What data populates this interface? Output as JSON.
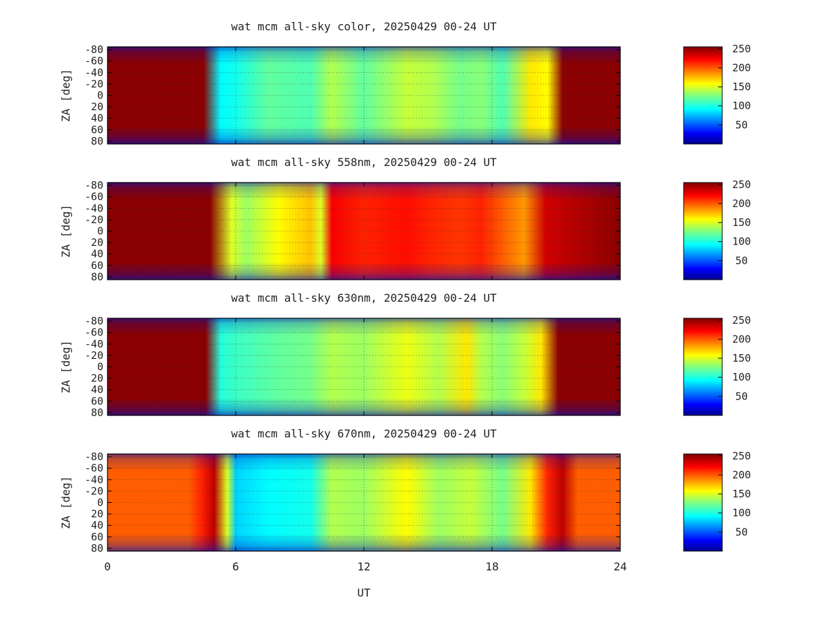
{
  "chart_data": [
    {
      "type": "heatmap",
      "title": "wat mcm all-sky color, 20250429 00-24 UT",
      "xlabel": "UT",
      "ylabel": "ZA [deg]",
      "xlim": [
        0,
        24
      ],
      "ylim": [
        -85,
        85
      ],
      "y_ticks": [
        "-80",
        "-60",
        "-40",
        "-20",
        "0",
        "20",
        "40",
        "60",
        "80"
      ],
      "colorbar": {
        "range": [
          0,
          255
        ],
        "ticks": [
          "50",
          "100",
          "150",
          "200",
          "250"
        ],
        "colormap": "jet"
      },
      "grid": true,
      "profile": {
        "ut": [
          0,
          4.5,
          5.3,
          6.0,
          7.5,
          9.5,
          10.5,
          12,
          14,
          15.2,
          16.5,
          17.5,
          18.5,
          19.8,
          20.6,
          21.3,
          24
        ],
        "value": [
          252,
          252,
          95,
          100,
          120,
          115,
          140,
          120,
          145,
          140,
          125,
          130,
          115,
          165,
          160,
          252,
          252
        ]
      }
    },
    {
      "type": "heatmap",
      "title": "wat mcm all-sky 558nm, 20250429 00-24 UT",
      "xlabel": "UT",
      "ylabel": "ZA [deg]",
      "xlim": [
        0,
        24
      ],
      "ylim": [
        -85,
        85
      ],
      "y_ticks": [
        "-80",
        "-60",
        "-40",
        "-20",
        "0",
        "20",
        "40",
        "60",
        "80"
      ],
      "colorbar": {
        "range": [
          0,
          255
        ],
        "ticks": [
          "50",
          "100",
          "150",
          "200",
          "250"
        ],
        "colormap": "jet"
      },
      "grid": true,
      "profile": {
        "ut": [
          0,
          4.8,
          5.8,
          6.5,
          8,
          9.5,
          10.0,
          10.5,
          12,
          14,
          15.0,
          16.5,
          17.5,
          18.5,
          19.5,
          20.5,
          24
        ],
        "value": [
          252,
          252,
          150,
          135,
          160,
          175,
          150,
          225,
          215,
          220,
          215,
          210,
          215,
          200,
          185,
          235,
          252
        ]
      }
    },
    {
      "type": "heatmap",
      "title": "wat mcm all-sky 630nm, 20250429 00-24 UT",
      "xlabel": "UT",
      "ylabel": "ZA [deg]",
      "xlim": [
        0,
        24
      ],
      "ylim": [
        -85,
        85
      ],
      "y_ticks": [
        "-80",
        "-60",
        "-40",
        "-20",
        "0",
        "20",
        "40",
        "60",
        "80"
      ],
      "colorbar": {
        "range": [
          0,
          255
        ],
        "ticks": [
          "50",
          "100",
          "150",
          "200",
          "250"
        ],
        "colormap": "jet"
      },
      "grid": true,
      "profile": {
        "ut": [
          0,
          4.6,
          5.3,
          6.0,
          8,
          9.5,
          10.5,
          12,
          14,
          15.5,
          16.8,
          17.5,
          18.5,
          19.5,
          20.3,
          21.1,
          24
        ],
        "value": [
          252,
          252,
          105,
          110,
          120,
          125,
          140,
          135,
          155,
          140,
          165,
          140,
          130,
          145,
          165,
          252,
          252
        ]
      }
    },
    {
      "type": "heatmap",
      "title": "wat mcm all-sky 670nm, 20250429 00-24 UT",
      "xlabel": "UT",
      "ylabel": "ZA [deg]",
      "xlim": [
        0,
        24
      ],
      "ylim": [
        -85,
        85
      ],
      "x_ticks": [
        "0",
        "6",
        "12",
        "18",
        "24"
      ],
      "y_ticks": [
        "-80",
        "-60",
        "-40",
        "-20",
        "0",
        "20",
        "40",
        "60",
        "80"
      ],
      "colorbar": {
        "range": [
          0,
          255
        ],
        "ticks": [
          "50",
          "100",
          "150",
          "200",
          "250"
        ],
        "colormap": "jet"
      },
      "grid": true,
      "profile": {
        "ut": [
          0,
          3.8,
          4.4,
          5.0,
          5.6,
          6.0,
          7.5,
          9.5,
          10.5,
          12,
          14,
          15.5,
          17,
          18.5,
          19.8,
          20.6,
          21.3,
          22.0,
          24
        ],
        "value": [
          200,
          200,
          215,
          240,
          150,
          85,
          95,
          100,
          140,
          135,
          160,
          135,
          145,
          125,
          165,
          215,
          240,
          200,
          200
        ]
      }
    }
  ]
}
